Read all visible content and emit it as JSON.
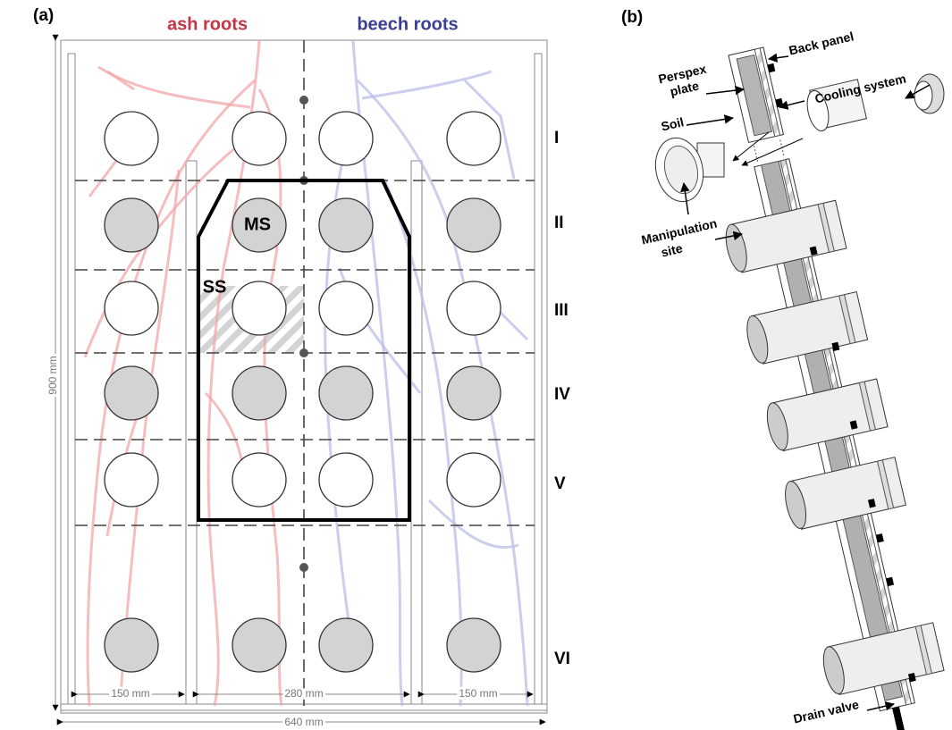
{
  "panel_a": {
    "label": "(a)",
    "ash_label": "ash roots",
    "beech_label": "beech roots",
    "rows": [
      "I",
      "II",
      "III",
      "IV",
      "V",
      "VI"
    ],
    "height": "900 mm",
    "width": "640 mm",
    "column_widths": [
      "150 mm",
      "280 mm",
      "150 mm"
    ],
    "ms": "MS",
    "ss": "SS"
  },
  "panel_b": {
    "label": "(b)",
    "back_panel": "Back panel",
    "perspex_plate": [
      "Perspex",
      "plate"
    ],
    "soil": "Soil",
    "cooling_system": "Cooling system",
    "manipulation_site": [
      "Manipulation",
      "site"
    ],
    "drain_valve": "Drain valve"
  }
}
